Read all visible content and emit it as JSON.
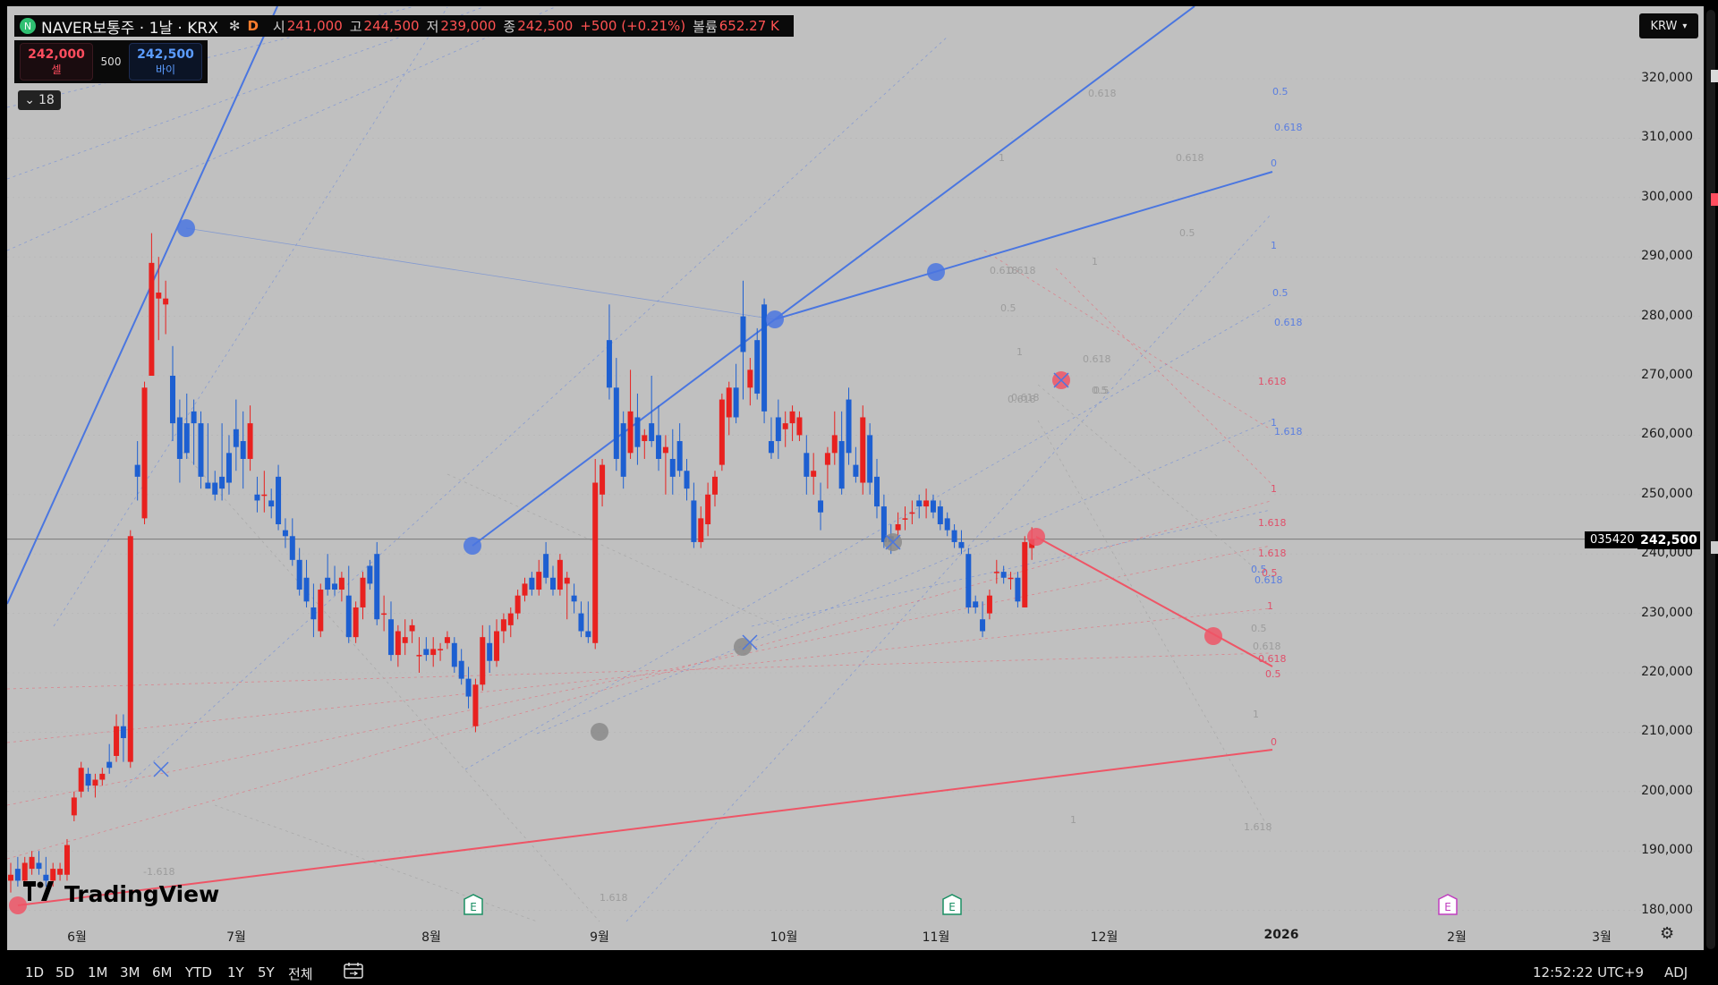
{
  "legend": {
    "logo": "N",
    "title": "NAVER보통주 · 1날 · KRX",
    "star": "✻",
    "dmark": "D",
    "open_label": "시",
    "open_value": "241,000",
    "high_label": "고",
    "high_value": "244,500",
    "low_label": "저",
    "low_value": "239,000",
    "close_label": "종",
    "close_value": "242,500",
    "change": "+500 (+0.21%)",
    "volume_label": "볼륨",
    "volume_value": "652.27 K"
  },
  "order_panel": {
    "sell_price": "242,000",
    "sell_label": "셀",
    "spread": "500",
    "buy_price": "242,500",
    "buy_label": "바이"
  },
  "collapse": {
    "icon": "chevron-down-icon",
    "count": "18"
  },
  "currency": {
    "label": "KRW"
  },
  "price_tags": {
    "symbol": "035420",
    "price": "242,500"
  },
  "brand": {
    "name": "TradingView"
  },
  "earnings_markers": [
    "E",
    "E",
    "E"
  ],
  "bottom_bar": {
    "ranges": [
      "1D",
      "5D",
      "1M",
      "3M",
      "6M",
      "YTD",
      "1Y",
      "5Y",
      "전체"
    ],
    "calendar_icon": "calendar-range-icon",
    "time": "12:52:22 UTC+9",
    "adj": "ADJ"
  },
  "colors": {
    "up": "#e8211f",
    "down": "#1d5fd1",
    "blue_drawing": "#4a76e0",
    "red_drawing": "#ee5566",
    "background": "#c0c0c0"
  },
  "chart_data": {
    "type": "candlestick",
    "title": "NAVER보통주 · 1날 · KRX",
    "ylim": [
      178000,
      324000
    ],
    "y_ticks": [
      "320,000",
      "310,000",
      "300,000",
      "290,000",
      "280,000",
      "270,000",
      "260,000",
      "250,000",
      "240,000",
      "230,000",
      "220,000",
      "210,000",
      "200,000",
      "190,000",
      "180,000"
    ],
    "x_ticks": [
      "6월",
      "7월",
      "8월",
      "9월",
      "10월",
      "11월",
      "12월",
      "2026",
      "2월",
      "3월"
    ],
    "fib_labels_blue": [
      "0.5",
      "0.618",
      "0",
      "1",
      "0.5",
      "0.618",
      "1",
      "1.618",
      "0.5",
      "0.618"
    ],
    "fib_labels_red": [
      "1.618",
      "1",
      "1.618",
      "1.618",
      "0.5",
      "1",
      "0.618",
      "0.5",
      "0"
    ],
    "fib_labels_gray": [
      "0.618",
      "0.618",
      "1",
      "0.5",
      "1",
      "0.618",
      "0.618",
      "0.5",
      "1",
      "0.618",
      "0.618",
      "0.5",
      "0.618",
      "0.5",
      "1",
      "1.618",
      "0.5",
      "0.618",
      "1",
      "-1.618",
      "1.618"
    ],
    "candles": [
      {
        "o": 185000,
        "h": 188000,
        "l": 183000,
        "c": 186000
      },
      {
        "o": 187000,
        "h": 189000,
        "l": 184000,
        "c": 185000
      },
      {
        "o": 185000,
        "h": 189000,
        "l": 184000,
        "c": 188000
      },
      {
        "o": 187000,
        "h": 190000,
        "l": 186000,
        "c": 189000
      },
      {
        "o": 188000,
        "h": 190000,
        "l": 186000,
        "c": 187000
      },
      {
        "o": 186000,
        "h": 189000,
        "l": 184000,
        "c": 185000
      },
      {
        "o": 185000,
        "h": 188000,
        "l": 184000,
        "c": 187000
      },
      {
        "o": 186000,
        "h": 188000,
        "l": 185000,
        "c": 187000
      },
      {
        "o": 186000,
        "h": 192000,
        "l": 185000,
        "c": 191000
      },
      {
        "o": 196000,
        "h": 200000,
        "l": 195000,
        "c": 199000
      },
      {
        "o": 200000,
        "h": 205000,
        "l": 199000,
        "c": 204000
      },
      {
        "o": 203000,
        "h": 204000,
        "l": 200000,
        "c": 201000
      },
      {
        "o": 201000,
        "h": 203000,
        "l": 199000,
        "c": 202000
      },
      {
        "o": 202000,
        "h": 204000,
        "l": 201000,
        "c": 203000
      },
      {
        "o": 205000,
        "h": 208000,
        "l": 203000,
        "c": 204000
      },
      {
        "o": 206000,
        "h": 213000,
        "l": 205000,
        "c": 211000
      },
      {
        "o": 211000,
        "h": 213000,
        "l": 205000,
        "c": 209000
      },
      {
        "o": 205000,
        "h": 244000,
        "l": 204000,
        "c": 243000
      },
      {
        "o": 255000,
        "h": 259000,
        "l": 249000,
        "c": 253000
      },
      {
        "o": 246000,
        "h": 269000,
        "l": 245000,
        "c": 268000
      },
      {
        "o": 270000,
        "h": 294000,
        "l": 270000,
        "c": 289000
      },
      {
        "o": 283000,
        "h": 290000,
        "l": 276000,
        "c": 284000
      },
      {
        "o": 282000,
        "h": 286000,
        "l": 277000,
        "c": 283000
      },
      {
        "o": 270000,
        "h": 275000,
        "l": 259000,
        "c": 262000
      },
      {
        "o": 263000,
        "h": 266000,
        "l": 252000,
        "c": 256000
      },
      {
        "o": 262000,
        "h": 267000,
        "l": 256000,
        "c": 257000
      },
      {
        "o": 264000,
        "h": 266000,
        "l": 255000,
        "c": 262000
      },
      {
        "o": 262000,
        "h": 264000,
        "l": 251000,
        "c": 253000
      },
      {
        "o": 252000,
        "h": 262000,
        "l": 251000,
        "c": 251000
      },
      {
        "o": 252000,
        "h": 254000,
        "l": 249000,
        "c": 250000
      },
      {
        "o": 253000,
        "h": 262000,
        "l": 249000,
        "c": 251000
      },
      {
        "o": 257000,
        "h": 260000,
        "l": 250000,
        "c": 252000
      },
      {
        "o": 261000,
        "h": 266000,
        "l": 254000,
        "c": 258000
      },
      {
        "o": 259000,
        "h": 264000,
        "l": 251000,
        "c": 256000
      },
      {
        "o": 256000,
        "h": 265000,
        "l": 254000,
        "c": 262000
      },
      {
        "o": 250000,
        "h": 253000,
        "l": 247000,
        "c": 249000
      },
      {
        "o": 250000,
        "h": 254000,
        "l": 247000,
        "c": 250000
      },
      {
        "o": 249000,
        "h": 251000,
        "l": 246000,
        "c": 248000
      },
      {
        "o": 253000,
        "h": 255000,
        "l": 244000,
        "c": 245000
      },
      {
        "o": 244000,
        "h": 246000,
        "l": 241000,
        "c": 243000
      },
      {
        "o": 243000,
        "h": 246000,
        "l": 238000,
        "c": 239000
      },
      {
        "o": 239000,
        "h": 241000,
        "l": 233000,
        "c": 234000
      },
      {
        "o": 236000,
        "h": 239000,
        "l": 231000,
        "c": 232000
      },
      {
        "o": 231000,
        "h": 235000,
        "l": 226000,
        "c": 229000
      },
      {
        "o": 227000,
        "h": 235000,
        "l": 226000,
        "c": 234000
      },
      {
        "o": 236000,
        "h": 240000,
        "l": 233000,
        "c": 234000
      },
      {
        "o": 235000,
        "h": 238000,
        "l": 233000,
        "c": 234000
      },
      {
        "o": 234000,
        "h": 237000,
        "l": 232000,
        "c": 236000
      },
      {
        "o": 233000,
        "h": 238000,
        "l": 225000,
        "c": 226000
      },
      {
        "o": 226000,
        "h": 232000,
        "l": 225000,
        "c": 231000
      },
      {
        "o": 231000,
        "h": 237000,
        "l": 229000,
        "c": 236000
      },
      {
        "o": 238000,
        "h": 239000,
        "l": 234000,
        "c": 235000
      },
      {
        "o": 240000,
        "h": 242000,
        "l": 228000,
        "c": 229000
      },
      {
        "o": 230000,
        "h": 233000,
        "l": 227000,
        "c": 230000
      },
      {
        "o": 229000,
        "h": 232000,
        "l": 222000,
        "c": 223000
      },
      {
        "o": 223000,
        "h": 228000,
        "l": 221000,
        "c": 227000
      },
      {
        "o": 225000,
        "h": 229000,
        "l": 223000,
        "c": 226000
      },
      {
        "o": 227000,
        "h": 229000,
        "l": 225000,
        "c": 228000
      },
      {
        "o": 223000,
        "h": 226000,
        "l": 220000,
        "c": 223000
      },
      {
        "o": 224000,
        "h": 226000,
        "l": 222000,
        "c": 223000
      },
      {
        "o": 223000,
        "h": 226000,
        "l": 221000,
        "c": 224000
      },
      {
        "o": 224000,
        "h": 225000,
        "l": 222000,
        "c": 224000
      },
      {
        "o": 225000,
        "h": 227000,
        "l": 224000,
        "c": 226000
      },
      {
        "o": 225000,
        "h": 226000,
        "l": 220000,
        "c": 221000
      },
      {
        "o": 222000,
        "h": 224000,
        "l": 218000,
        "c": 219000
      },
      {
        "o": 219000,
        "h": 221000,
        "l": 214000,
        "c": 216000
      },
      {
        "o": 211000,
        "h": 219000,
        "l": 210000,
        "c": 218000
      },
      {
        "o": 218000,
        "h": 228000,
        "l": 217000,
        "c": 226000
      },
      {
        "o": 225000,
        "h": 228000,
        "l": 220000,
        "c": 222000
      },
      {
        "o": 222000,
        "h": 229000,
        "l": 221000,
        "c": 227000
      },
      {
        "o": 227000,
        "h": 230000,
        "l": 225000,
        "c": 229000
      },
      {
        "o": 228000,
        "h": 231000,
        "l": 226000,
        "c": 230000
      },
      {
        "o": 230000,
        "h": 234000,
        "l": 229000,
        "c": 233000
      },
      {
        "o": 233000,
        "h": 236000,
        "l": 232000,
        "c": 235000
      },
      {
        "o": 236000,
        "h": 237000,
        "l": 233000,
        "c": 234000
      },
      {
        "o": 234000,
        "h": 239000,
        "l": 233000,
        "c": 237000
      },
      {
        "o": 240000,
        "h": 242000,
        "l": 235000,
        "c": 236000
      },
      {
        "o": 236000,
        "h": 238000,
        "l": 233000,
        "c": 234000
      },
      {
        "o": 234000,
        "h": 240000,
        "l": 233000,
        "c": 239000
      },
      {
        "o": 235000,
        "h": 237000,
        "l": 229000,
        "c": 236000
      },
      {
        "o": 233000,
        "h": 235000,
        "l": 230000,
        "c": 232000
      },
      {
        "o": 230000,
        "h": 232000,
        "l": 226000,
        "c": 227000
      },
      {
        "o": 227000,
        "h": 232000,
        "l": 225000,
        "c": 226000
      },
      {
        "o": 225000,
        "h": 256000,
        "l": 224000,
        "c": 252000
      },
      {
        "o": 250000,
        "h": 256000,
        "l": 248000,
        "c": 255000
      },
      {
        "o": 276000,
        "h": 282000,
        "l": 266000,
        "c": 268000
      },
      {
        "o": 268000,
        "h": 273000,
        "l": 254000,
        "c": 256000
      },
      {
        "o": 262000,
        "h": 264000,
        "l": 251000,
        "c": 253000
      },
      {
        "o": 257000,
        "h": 271000,
        "l": 256000,
        "c": 264000
      },
      {
        "o": 263000,
        "h": 267000,
        "l": 255000,
        "c": 258000
      },
      {
        "o": 259000,
        "h": 261000,
        "l": 256000,
        "c": 260000
      },
      {
        "o": 262000,
        "h": 270000,
        "l": 258000,
        "c": 259000
      },
      {
        "o": 260000,
        "h": 265000,
        "l": 254000,
        "c": 256000
      },
      {
        "o": 257000,
        "h": 260000,
        "l": 250000,
        "c": 258000
      },
      {
        "o": 256000,
        "h": 261000,
        "l": 250000,
        "c": 253000
      },
      {
        "o": 259000,
        "h": 262000,
        "l": 253000,
        "c": 254000
      },
      {
        "o": 254000,
        "h": 256000,
        "l": 249000,
        "c": 251000
      },
      {
        "o": 249000,
        "h": 252000,
        "l": 241000,
        "c": 242000
      },
      {
        "o": 242000,
        "h": 248000,
        "l": 241000,
        "c": 246000
      },
      {
        "o": 245000,
        "h": 252000,
        "l": 243000,
        "c": 250000
      },
      {
        "o": 250000,
        "h": 254000,
        "l": 248000,
        "c": 253000
      },
      {
        "o": 255000,
        "h": 267000,
        "l": 254000,
        "c": 266000
      },
      {
        "o": 263000,
        "h": 269000,
        "l": 260000,
        "c": 268000
      },
      {
        "o": 268000,
        "h": 272000,
        "l": 262000,
        "c": 263000
      },
      {
        "o": 280000,
        "h": 286000,
        "l": 266000,
        "c": 274000
      },
      {
        "o": 268000,
        "h": 273000,
        "l": 265000,
        "c": 271000
      },
      {
        "o": 276000,
        "h": 278000,
        "l": 266000,
        "c": 267000
      },
      {
        "o": 282000,
        "h": 283000,
        "l": 262000,
        "c": 264000
      },
      {
        "o": 259000,
        "h": 263000,
        "l": 256000,
        "c": 257000
      },
      {
        "o": 263000,
        "h": 266000,
        "l": 256000,
        "c": 259000
      },
      {
        "o": 261000,
        "h": 264000,
        "l": 258000,
        "c": 262000
      },
      {
        "o": 262000,
        "h": 265000,
        "l": 259000,
        "c": 264000
      },
      {
        "o": 260000,
        "h": 264000,
        "l": 259000,
        "c": 263000
      },
      {
        "o": 257000,
        "h": 260000,
        "l": 250000,
        "c": 253000
      },
      {
        "o": 253000,
        "h": 257000,
        "l": 250000,
        "c": 254000
      },
      {
        "o": 249000,
        "h": 252000,
        "l": 244000,
        "c": 247000
      },
      {
        "o": 255000,
        "h": 258000,
        "l": 251000,
        "c": 257000
      },
      {
        "o": 257000,
        "h": 264000,
        "l": 255000,
        "c": 260000
      },
      {
        "o": 259000,
        "h": 264000,
        "l": 250000,
        "c": 251000
      },
      {
        "o": 266000,
        "h": 268000,
        "l": 255000,
        "c": 257000
      },
      {
        "o": 255000,
        "h": 258000,
        "l": 252000,
        "c": 253000
      },
      {
        "o": 252000,
        "h": 265000,
        "l": 250000,
        "c": 263000
      },
      {
        "o": 260000,
        "h": 262000,
        "l": 250000,
        "c": 252000
      },
      {
        "o": 253000,
        "h": 256000,
        "l": 246000,
        "c": 248000
      },
      {
        "o": 248000,
        "h": 250000,
        "l": 241000,
        "c": 242000
      },
      {
        "o": 243000,
        "h": 245000,
        "l": 240000,
        "c": 242000
      },
      {
        "o": 244000,
        "h": 247000,
        "l": 243000,
        "c": 245000
      },
      {
        "o": 246000,
        "h": 248000,
        "l": 244000,
        "c": 246000
      },
      {
        "o": 247000,
        "h": 249000,
        "l": 245000,
        "c": 247000
      },
      {
        "o": 249000,
        "h": 250000,
        "l": 246000,
        "c": 248000
      },
      {
        "o": 248000,
        "h": 251000,
        "l": 246000,
        "c": 249000
      },
      {
        "o": 249000,
        "h": 250000,
        "l": 246000,
        "c": 247000
      },
      {
        "o": 248000,
        "h": 249000,
        "l": 244000,
        "c": 245000
      },
      {
        "o": 246000,
        "h": 247000,
        "l": 243000,
        "c": 244000
      },
      {
        "o": 244000,
        "h": 245000,
        "l": 241000,
        "c": 242000
      },
      {
        "o": 242000,
        "h": 244000,
        "l": 240000,
        "c": 241000
      },
      {
        "o": 240000,
        "h": 241000,
        "l": 230000,
        "c": 231000
      },
      {
        "o": 232000,
        "h": 233000,
        "l": 230000,
        "c": 231000
      },
      {
        "o": 229000,
        "h": 232000,
        "l": 226000,
        "c": 227000
      },
      {
        "o": 230000,
        "h": 234000,
        "l": 229000,
        "c": 233000
      },
      {
        "o": 237000,
        "h": 239000,
        "l": 235000,
        "c": 237000
      },
      {
        "o": 237000,
        "h": 238000,
        "l": 235000,
        "c": 236000
      },
      {
        "o": 236000,
        "h": 237000,
        "l": 234000,
        "c": 236000
      },
      {
        "o": 236000,
        "h": 237000,
        "l": 231000,
        "c": 232000
      },
      {
        "o": 231000,
        "h": 243000,
        "l": 231000,
        "c": 242000
      },
      {
        "o": 241000,
        "h": 244500,
        "l": 239000,
        "c": 242500
      }
    ]
  }
}
